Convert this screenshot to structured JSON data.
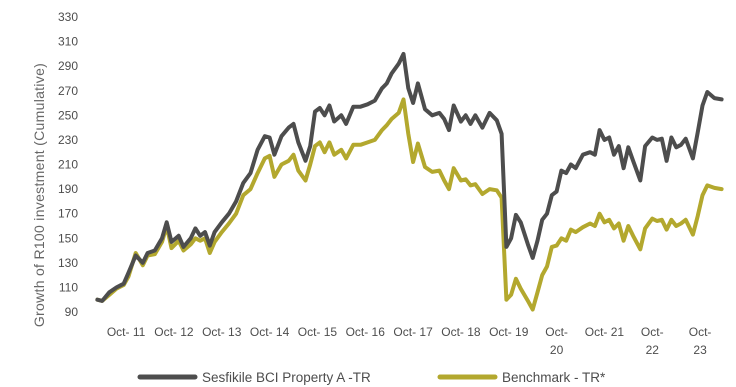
{
  "chart_data": {
    "type": "line",
    "title": "",
    "xlabel": "",
    "ylabel": "Growth of R100 investment (Cumulative)",
    "ylim": [
      90,
      330
    ],
    "y_ticks": [
      90,
      110,
      130,
      150,
      170,
      190,
      210,
      230,
      250,
      270,
      290,
      310,
      330
    ],
    "x_tick_labels": [
      [
        "Oct- 11"
      ],
      [
        "Oct- 12"
      ],
      [
        "Oct- 13"
      ],
      [
        "Oct- 14"
      ],
      [
        "Oct- 15"
      ],
      [
        "Oct- 16"
      ],
      [
        "Oct- 17"
      ],
      [
        "Oct- 18"
      ],
      [
        "Oct- 19"
      ],
      [
        "Oct-",
        "20"
      ],
      [
        "Oct- 21"
      ],
      [
        "Oct-",
        "22"
      ],
      [
        "Oct-",
        "23"
      ]
    ],
    "x_tick_positions": [
      2011.75,
      2012.75,
      2013.75,
      2014.75,
      2015.75,
      2016.75,
      2017.75,
      2018.75,
      2019.75,
      2020.75,
      2021.75,
      2022.75,
      2023.75
    ],
    "xlim": [
      2011.1,
      2024.25
    ],
    "grid": false,
    "legend_position": "bottom",
    "series": [
      {
        "name": "Sesfikile BCI Property A -TR",
        "color": "#4d4d4d",
        "points": [
          [
            2011.15,
            100
          ],
          [
            2011.25,
            99
          ],
          [
            2011.4,
            106
          ],
          [
            2011.55,
            110
          ],
          [
            2011.7,
            113
          ],
          [
            2011.8,
            122
          ],
          [
            2011.95,
            136
          ],
          [
            2012.1,
            130
          ],
          [
            2012.2,
            138
          ],
          [
            2012.35,
            140
          ],
          [
            2012.5,
            150
          ],
          [
            2012.6,
            163
          ],
          [
            2012.7,
            147
          ],
          [
            2012.85,
            152
          ],
          [
            2012.95,
            143
          ],
          [
            2013.1,
            150
          ],
          [
            2013.2,
            158
          ],
          [
            2013.3,
            152
          ],
          [
            2013.4,
            155
          ],
          [
            2013.5,
            144
          ],
          [
            2013.6,
            155
          ],
          [
            2013.75,
            163
          ],
          [
            2013.9,
            170
          ],
          [
            2014.05,
            180
          ],
          [
            2014.2,
            195
          ],
          [
            2014.35,
            203
          ],
          [
            2014.5,
            222
          ],
          [
            2014.65,
            233
          ],
          [
            2014.75,
            232
          ],
          [
            2014.85,
            218
          ],
          [
            2015.0,
            233
          ],
          [
            2015.15,
            240
          ],
          [
            2015.25,
            243
          ],
          [
            2015.35,
            228
          ],
          [
            2015.5,
            213
          ],
          [
            2015.6,
            225
          ],
          [
            2015.7,
            253
          ],
          [
            2015.8,
            256
          ],
          [
            2015.9,
            250
          ],
          [
            2016.0,
            258
          ],
          [
            2016.1,
            245
          ],
          [
            2016.25,
            250
          ],
          [
            2016.35,
            243
          ],
          [
            2016.5,
            257
          ],
          [
            2016.65,
            257
          ],
          [
            2016.8,
            259
          ],
          [
            2016.95,
            262
          ],
          [
            2017.1,
            272
          ],
          [
            2017.2,
            276
          ],
          [
            2017.3,
            284
          ],
          [
            2017.45,
            292
          ],
          [
            2017.55,
            300
          ],
          [
            2017.65,
            272
          ],
          [
            2017.75,
            260
          ],
          [
            2017.85,
            276
          ],
          [
            2018.0,
            255
          ],
          [
            2018.15,
            250
          ],
          [
            2018.3,
            252
          ],
          [
            2018.4,
            247
          ],
          [
            2018.5,
            238
          ],
          [
            2018.6,
            258
          ],
          [
            2018.75,
            245
          ],
          [
            2018.85,
            250
          ],
          [
            2018.95,
            243
          ],
          [
            2019.05,
            250
          ],
          [
            2019.2,
            240
          ],
          [
            2019.35,
            252
          ],
          [
            2019.5,
            246
          ],
          [
            2019.6,
            235
          ],
          [
            2019.7,
            143
          ],
          [
            2019.8,
            150
          ],
          [
            2019.9,
            169
          ],
          [
            2020.0,
            163
          ],
          [
            2020.15,
            145
          ],
          [
            2020.25,
            134
          ],
          [
            2020.35,
            148
          ],
          [
            2020.45,
            165
          ],
          [
            2020.55,
            170
          ],
          [
            2020.65,
            185
          ],
          [
            2020.75,
            188
          ],
          [
            2020.85,
            205
          ],
          [
            2020.95,
            203
          ],
          [
            2021.05,
            210
          ],
          [
            2021.15,
            207
          ],
          [
            2021.3,
            218
          ],
          [
            2021.45,
            220
          ],
          [
            2021.55,
            218
          ],
          [
            2021.65,
            238
          ],
          [
            2021.75,
            230
          ],
          [
            2021.85,
            232
          ],
          [
            2021.95,
            218
          ],
          [
            2022.05,
            225
          ],
          [
            2022.15,
            207
          ],
          [
            2022.25,
            224
          ],
          [
            2022.35,
            213
          ],
          [
            2022.5,
            197
          ],
          [
            2022.6,
            225
          ],
          [
            2022.75,
            232
          ],
          [
            2022.85,
            230
          ],
          [
            2022.95,
            231
          ],
          [
            2023.05,
            213
          ],
          [
            2023.15,
            232
          ],
          [
            2023.25,
            224
          ],
          [
            2023.35,
            226
          ],
          [
            2023.45,
            231
          ],
          [
            2023.6,
            215
          ],
          [
            2023.7,
            236
          ],
          [
            2023.8,
            258
          ],
          [
            2023.9,
            269
          ],
          [
            2024.05,
            264
          ],
          [
            2024.2,
            263
          ]
        ]
      },
      {
        "name": "Benchmark - TR*",
        "color": "#b3a82e",
        "points": [
          [
            2011.15,
            100
          ],
          [
            2011.25,
            99
          ],
          [
            2011.4,
            104
          ],
          [
            2011.55,
            109
          ],
          [
            2011.7,
            112
          ],
          [
            2011.8,
            119
          ],
          [
            2011.95,
            138
          ],
          [
            2012.1,
            128
          ],
          [
            2012.2,
            136
          ],
          [
            2012.35,
            137
          ],
          [
            2012.5,
            147
          ],
          [
            2012.6,
            160
          ],
          [
            2012.7,
            142
          ],
          [
            2012.85,
            148
          ],
          [
            2012.95,
            140
          ],
          [
            2013.1,
            145
          ],
          [
            2013.2,
            150
          ],
          [
            2013.3,
            148
          ],
          [
            2013.4,
            150
          ],
          [
            2013.5,
            138
          ],
          [
            2013.6,
            147
          ],
          [
            2013.75,
            155
          ],
          [
            2013.9,
            162
          ],
          [
            2014.05,
            170
          ],
          [
            2014.2,
            185
          ],
          [
            2014.35,
            190
          ],
          [
            2014.5,
            203
          ],
          [
            2014.65,
            215
          ],
          [
            2014.75,
            217
          ],
          [
            2014.85,
            200
          ],
          [
            2015.0,
            210
          ],
          [
            2015.15,
            213
          ],
          [
            2015.25,
            218
          ],
          [
            2015.35,
            205
          ],
          [
            2015.5,
            197
          ],
          [
            2015.6,
            210
          ],
          [
            2015.7,
            225
          ],
          [
            2015.8,
            228
          ],
          [
            2015.9,
            220
          ],
          [
            2016.0,
            228
          ],
          [
            2016.1,
            218
          ],
          [
            2016.25,
            222
          ],
          [
            2016.35,
            215
          ],
          [
            2016.5,
            226
          ],
          [
            2016.65,
            226
          ],
          [
            2016.8,
            228
          ],
          [
            2016.95,
            230
          ],
          [
            2017.1,
            238
          ],
          [
            2017.2,
            242
          ],
          [
            2017.3,
            247
          ],
          [
            2017.45,
            252
          ],
          [
            2017.55,
            263
          ],
          [
            2017.65,
            235
          ],
          [
            2017.75,
            212
          ],
          [
            2017.85,
            227
          ],
          [
            2018.0,
            208
          ],
          [
            2018.15,
            204
          ],
          [
            2018.3,
            205
          ],
          [
            2018.4,
            197
          ],
          [
            2018.5,
            190
          ],
          [
            2018.6,
            207
          ],
          [
            2018.75,
            197
          ],
          [
            2018.85,
            198
          ],
          [
            2018.95,
            193
          ],
          [
            2019.05,
            194
          ],
          [
            2019.2,
            186
          ],
          [
            2019.35,
            190
          ],
          [
            2019.5,
            189
          ],
          [
            2019.6,
            183
          ],
          [
            2019.7,
            100
          ],
          [
            2019.8,
            104
          ],
          [
            2019.9,
            117
          ],
          [
            2020.0,
            109
          ],
          [
            2020.15,
            99
          ],
          [
            2020.25,
            92
          ],
          [
            2020.35,
            106
          ],
          [
            2020.45,
            120
          ],
          [
            2020.55,
            127
          ],
          [
            2020.65,
            143
          ],
          [
            2020.75,
            144
          ],
          [
            2020.85,
            150
          ],
          [
            2020.95,
            148
          ],
          [
            2021.05,
            157
          ],
          [
            2021.15,
            155
          ],
          [
            2021.3,
            159
          ],
          [
            2021.45,
            162
          ],
          [
            2021.55,
            160
          ],
          [
            2021.65,
            170
          ],
          [
            2021.75,
            163
          ],
          [
            2021.85,
            165
          ],
          [
            2021.95,
            158
          ],
          [
            2022.05,
            162
          ],
          [
            2022.15,
            148
          ],
          [
            2022.25,
            160
          ],
          [
            2022.35,
            152
          ],
          [
            2022.5,
            141
          ],
          [
            2022.6,
            158
          ],
          [
            2022.75,
            166
          ],
          [
            2022.85,
            164
          ],
          [
            2022.95,
            165
          ],
          [
            2023.05,
            157
          ],
          [
            2023.15,
            165
          ],
          [
            2023.25,
            160
          ],
          [
            2023.35,
            162
          ],
          [
            2023.45,
            165
          ],
          [
            2023.6,
            153
          ],
          [
            2023.7,
            168
          ],
          [
            2023.8,
            185
          ],
          [
            2023.9,
            193
          ],
          [
            2024.05,
            191
          ],
          [
            2024.2,
            190
          ]
        ]
      }
    ]
  }
}
